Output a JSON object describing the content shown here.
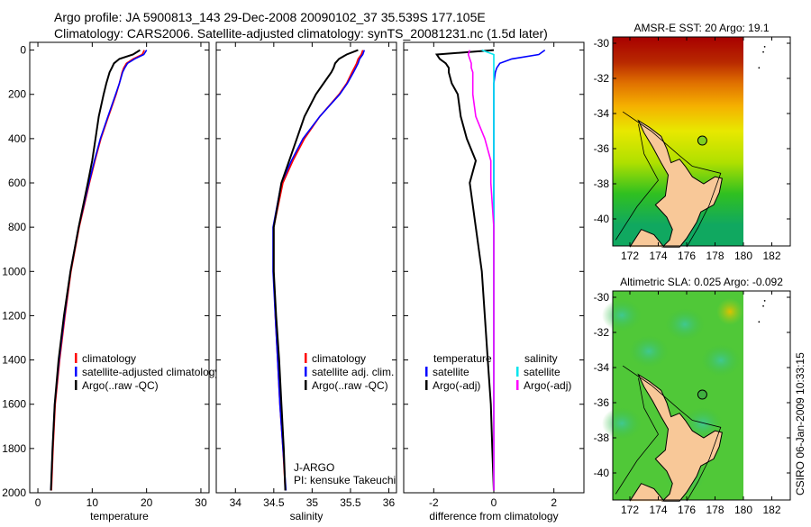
{
  "title_line1": "Argo profile: JA 5900813_143 29-Dec-2008 20090102_37 35.539S 177.105E",
  "title_line2": "Climatology: CARS2006. Satellite-adjusted climatology: synTS_20081231.nc (1.5d later)",
  "timestamp": "CSIRO 06-Jan-2009 10:33:15",
  "colors": {
    "climatology": "#ff0000",
    "satellite": "#0000ff",
    "argo": "#000000",
    "sal_satellite": "#00e5ee",
    "sal_argo": "#ff00ff"
  },
  "chart_data": [
    {
      "type": "line",
      "id": "temperature",
      "xlabel": "temperature",
      "ylabel": "",
      "xlim": [
        -1.5,
        31.5
      ],
      "ylim": [
        2000,
        -35
      ],
      "xticks": [
        "0",
        "10",
        "20",
        "30"
      ],
      "xtick_values": [
        0,
        10,
        20,
        30
      ],
      "yticks": [
        "0",
        "200",
        "400",
        "600",
        "800",
        "1000",
        "1200",
        "1400",
        "1600",
        "1800",
        "2000"
      ],
      "ytick_values": [
        0,
        200,
        400,
        600,
        800,
        1000,
        1200,
        1400,
        1600,
        1800,
        2000
      ],
      "depth": [
        0,
        20,
        40,
        60,
        80,
        100,
        150,
        200,
        300,
        400,
        500,
        600,
        800,
        1000,
        1200,
        1400,
        1600,
        1800,
        1990
      ],
      "series": [
        {
          "name": "climatology",
          "color": "#ff0000",
          "values": [
            19.6,
            19.2,
            17.5,
            16.3,
            15.8,
            15.5,
            15.0,
            14.4,
            13.0,
            11.6,
            10.5,
            9.5,
            7.6,
            6.1,
            5.0,
            4.0,
            3.2,
            2.8,
            2.5
          ]
        },
        {
          "name": "satellite-adjusted climatology",
          "color": "#0000ff",
          "values": [
            20.0,
            19.5,
            17.8,
            16.5,
            16.0,
            15.6,
            15.0,
            14.3,
            12.9,
            11.5,
            10.4,
            9.4,
            7.5,
            6.0,
            4.9,
            3.9,
            3.1,
            2.7,
            2.4
          ]
        },
        {
          "name": "Argo(..raw -QC)",
          "color": "#000000",
          "values": [
            18.8,
            17.5,
            15.0,
            14.0,
            13.6,
            13.2,
            12.6,
            12.1,
            11.2,
            10.6,
            10.0,
            9.2,
            7.5,
            6.0,
            4.8,
            3.8,
            3.1,
            2.7,
            2.4
          ]
        }
      ],
      "legend": [
        "climatology",
        "satellite-adjusted climatology",
        "Argo(..raw -QC)"
      ],
      "legend_position": "lower-center"
    },
    {
      "type": "line",
      "id": "salinity",
      "xlabel": "salinity",
      "xlim": [
        33.75,
        36.1
      ],
      "ylim": [
        2000,
        -35
      ],
      "xticks": [
        "34",
        "34.5",
        "35",
        "35.5",
        "36"
      ],
      "xtick_values": [
        34,
        34.5,
        35,
        35.5,
        36
      ],
      "depth": [
        0,
        20,
        40,
        60,
        80,
        100,
        150,
        200,
        300,
        400,
        500,
        600,
        800,
        1000,
        1200,
        1400,
        1600,
        1800,
        1990
      ],
      "series": [
        {
          "name": "climatology",
          "color": "#ff0000",
          "values": [
            35.66,
            35.64,
            35.6,
            35.58,
            35.55,
            35.52,
            35.45,
            35.35,
            35.1,
            34.9,
            34.75,
            34.62,
            34.5,
            34.5,
            34.52,
            34.55,
            34.58,
            34.62,
            34.65
          ]
        },
        {
          "name": "satellite adj. clim.",
          "color": "#0000ff",
          "values": [
            35.68,
            35.66,
            35.62,
            35.6,
            35.57,
            35.54,
            35.46,
            35.36,
            35.1,
            34.88,
            34.73,
            34.6,
            34.49,
            34.49,
            34.52,
            34.55,
            34.58,
            34.62,
            34.66
          ]
        },
        {
          "name": "Argo(..raw -QC)",
          "color": "#000000",
          "values": [
            35.6,
            35.45,
            35.35,
            35.3,
            35.28,
            35.25,
            35.15,
            35.05,
            34.9,
            34.8,
            34.7,
            34.6,
            34.5,
            34.5,
            34.53,
            34.57,
            34.6,
            34.63,
            34.65
          ]
        }
      ],
      "legend": [
        "climatology",
        "satellite adj. clim.",
        "Argo(..raw -QC)"
      ],
      "annotation": [
        "J-ARGO",
        "PI: kensuke Takeuchi"
      ]
    },
    {
      "type": "line",
      "id": "difference",
      "xlabel": "difference from climatology",
      "xlim": [
        -3.0,
        3.0
      ],
      "ylim": [
        2000,
        -35
      ],
      "xticks": [
        "-2",
        "0",
        "2"
      ],
      "xtick_values": [
        -2,
        0,
        2
      ],
      "depth": [
        0,
        20,
        40,
        60,
        80,
        100,
        150,
        200,
        300,
        400,
        500,
        600,
        800,
        1000,
        1200,
        1400,
        1600,
        1800,
        1990
      ],
      "series": [
        {
          "name": "temperature satellite",
          "color": "#0000ff",
          "values": [
            1.7,
            1.5,
            0.6,
            0.2,
            0.1,
            0.05,
            0.0,
            0.0,
            0.0,
            0.0,
            0.0,
            0.0,
            0.0,
            0.0,
            0.0,
            0.0,
            0.0,
            0.0,
            0.0
          ]
        },
        {
          "name": "temperature Argo(-adj)",
          "color": "#000000",
          "values": [
            0.0,
            -1.9,
            -1.8,
            -1.6,
            -1.5,
            -1.5,
            -1.4,
            -1.2,
            -1.1,
            -0.9,
            -0.6,
            -0.8,
            -0.6,
            -0.4,
            -0.3,
            -0.2,
            -0.1,
            -0.05,
            0.0
          ]
        },
        {
          "name": "salinity satellite",
          "color": "#00e5ee",
          "values": [
            -0.4,
            0.0,
            0.0,
            0.0,
            0.0,
            0.0,
            0.0,
            0.0,
            0.0,
            0.0,
            0.0,
            0.0,
            0.0,
            0.0,
            0.0,
            0.0,
            0.0,
            0.0,
            0.0
          ]
        },
        {
          "name": "salinity Argo(-adj)",
          "color": "#ff00ff",
          "values": [
            -0.8,
            -0.85,
            -0.8,
            -0.75,
            -0.75,
            -0.7,
            -0.7,
            -0.7,
            -0.6,
            -0.3,
            -0.1,
            -0.1,
            0.0,
            0.0,
            0.0,
            0.0,
            0.0,
            0.0,
            0.0
          ]
        }
      ],
      "legend_temperature": {
        "heading": "temperature",
        "items": [
          "satellite",
          "Argo(-adj)"
        ]
      },
      "legend_salinity": {
        "heading": "salinity",
        "items": [
          "satellite",
          "Argo(-adj)"
        ]
      }
    }
  ],
  "maps": [
    {
      "title": "AMSR-E SST: 20 Argo: 19.1",
      "type": "sst"
    },
    {
      "title": "Altimetric SLA: 0.025 Argo: -0.092",
      "type": "sla"
    }
  ],
  "map_axes": {
    "lon_ticks": [
      "172",
      "174",
      "176",
      "178",
      "180",
      "182"
    ],
    "lon_values": [
      172,
      174,
      176,
      178,
      180,
      182
    ],
    "lat_ticks": [
      "-30",
      "-32",
      "-34",
      "-36",
      "-38",
      "-40"
    ],
    "lat_values": [
      -30,
      -32,
      -34,
      -36,
      -38,
      -40
    ]
  },
  "float_position": {
    "lat": -35.539,
    "lon": 177.105
  }
}
